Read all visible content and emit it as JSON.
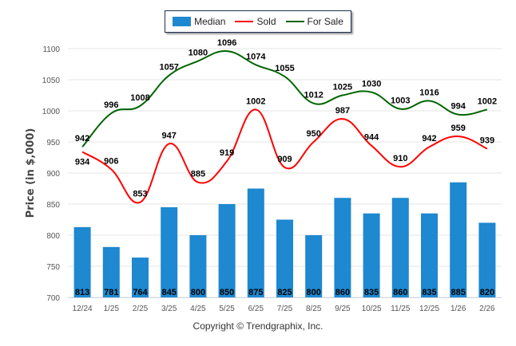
{
  "chart_data": {
    "type": "bar",
    "title": "",
    "xlabel": "",
    "ylabel": "Price (in $,000)",
    "ylim": [
      700,
      1100
    ],
    "yticks": [
      700,
      750,
      800,
      850,
      900,
      950,
      1000,
      1050,
      1100
    ],
    "grid": true,
    "legend_position": "top-center",
    "categories": [
      "12/24",
      "1/25",
      "2/25",
      "3/25",
      "4/25",
      "5/25",
      "6/25",
      "7/25",
      "8/25",
      "9/25",
      "10/25",
      "11/25",
      "12/25",
      "1/26",
      "2/26"
    ],
    "series": [
      {
        "name": "Median",
        "type": "bar",
        "color": "#1e88d0",
        "values": [
          813,
          781,
          764,
          845,
          800,
          850,
          875,
          825,
          800,
          860,
          835,
          860,
          835,
          885,
          820
        ]
      },
      {
        "name": "Sold",
        "type": "spline",
        "color": "#ff0000",
        "values": [
          934,
          906,
          853,
          947,
          885,
          919,
          1002,
          909,
          950,
          987,
          944,
          910,
          942,
          959,
          939
        ]
      },
      {
        "name": "For Sale",
        "type": "spline",
        "color": "#006400",
        "values": [
          942,
          996,
          1008,
          1057,
          1080,
          1096,
          1074,
          1055,
          1012,
          1025,
          1030,
          1003,
          1016,
          994,
          1002
        ]
      }
    ],
    "footer": "Copyright © Trendgraphix, Inc."
  }
}
